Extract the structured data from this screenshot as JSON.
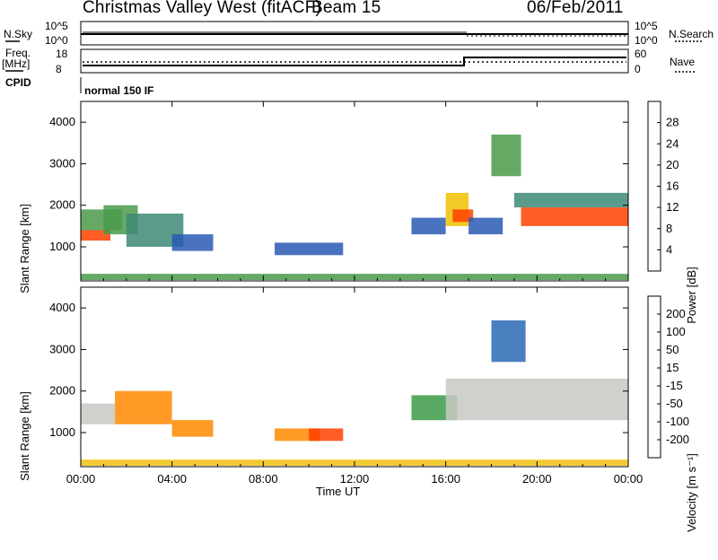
{
  "header": {
    "station": "Christmas Valley West (fitACF)",
    "beam": "Beam 15",
    "date": "06/Feb/2011"
  },
  "top_panel": {
    "nsky_label": "N.Sky",
    "nsky_ticks": [
      "10^5",
      "10^0"
    ],
    "nsearch_label": "N.Search",
    "nsearch_ticks": [
      "10^5",
      "10^0"
    ],
    "freq_label_1": "Freq.",
    "freq_label_2": "[MHz]",
    "freq_ticks": [
      "18",
      "8"
    ],
    "nave_label": "Nave",
    "nave_ticks": [
      "60",
      "0"
    ],
    "cpid_label": "CPID",
    "cpid_value": "normal 150 IF"
  },
  "colors": {
    "power": [
      "#1a1aff",
      "#2a5ab4",
      "#3d8a78",
      "#4a9a4a",
      "#f0c000",
      "#ff8000",
      "#ff4000",
      "#ff0000"
    ],
    "velocity": [
      "#2020c8",
      "#2a6ab4",
      "#3c9a46",
      "#7ad040",
      "#c8c8c4",
      "#f0c010",
      "#ff8800",
      "#ff4000",
      "#e00000"
    ]
  },
  "chart_data": [
    {
      "type": "heatmap",
      "quantity": "Power",
      "ylabel": "Slant Range [km]",
      "xlabel": "",
      "ylim": [
        180,
        4500
      ],
      "xlim": [
        0,
        24
      ],
      "x_ticks": [
        "00:00",
        "04:00",
        "08:00",
        "12:00",
        "16:00",
        "20:00",
        "00:00"
      ],
      "y_ticks": [
        1000,
        2000,
        3000,
        4000
      ],
      "colorbar_label": "Power [dB]",
      "colorbar_ticks": [
        "4",
        "8",
        "12",
        "16",
        "20",
        "24",
        "28"
      ],
      "colorbar_range": [
        0,
        30
      ],
      "regions": [
        {
          "t0": 0.0,
          "t1": 1.3,
          "r0": 1150,
          "r1": 1400,
          "value": 26
        },
        {
          "t0": 0.0,
          "t1": 1.8,
          "r0": 1400,
          "r1": 1900,
          "value": 12
        },
        {
          "t0": 1.0,
          "t1": 2.5,
          "r0": 1300,
          "r1": 2000,
          "value": 14
        },
        {
          "t0": 2.0,
          "t1": 4.5,
          "r0": 1000,
          "r1": 1800,
          "value": 8
        },
        {
          "t0": 4.0,
          "t1": 5.8,
          "r0": 900,
          "r1": 1300,
          "value": 6
        },
        {
          "t0": 8.5,
          "t1": 11.5,
          "r0": 800,
          "r1": 1100,
          "value": 6
        },
        {
          "t0": 0.0,
          "t1": 24.0,
          "r0": 200,
          "r1": 350,
          "value": 14
        },
        {
          "t0": 14.5,
          "t1": 16.0,
          "r0": 1300,
          "r1": 1700,
          "value": 5
        },
        {
          "t0": 16.0,
          "t1": 17.0,
          "r0": 1500,
          "r1": 2300,
          "value": 18
        },
        {
          "t0": 16.3,
          "t1": 17.2,
          "r0": 1600,
          "r1": 1900,
          "value": 26
        },
        {
          "t0": 17.0,
          "t1": 18.5,
          "r0": 1300,
          "r1": 1700,
          "value": 5
        },
        {
          "t0": 18.0,
          "t1": 19.3,
          "r0": 2700,
          "r1": 3700,
          "value": 12
        },
        {
          "t0": 19.3,
          "t1": 24.0,
          "r0": 1500,
          "r1": 1950,
          "value": 26
        },
        {
          "t0": 19.0,
          "t1": 24.0,
          "r0": 1950,
          "r1": 2300,
          "value": 10
        }
      ]
    },
    {
      "type": "heatmap",
      "quantity": "Velocity",
      "ylabel": "Slant Range [km]",
      "xlabel": "Time UT",
      "ylim": [
        180,
        4500
      ],
      "xlim": [
        0,
        24
      ],
      "x_ticks": [
        "00:00",
        "04:00",
        "08:00",
        "12:00",
        "16:00",
        "20:00",
        "00:00"
      ],
      "y_ticks": [
        1000,
        2000,
        3000,
        4000
      ],
      "colorbar_label": "Velocity [m s⁻¹]",
      "colorbar_ticks": [
        "200",
        "100",
        "50",
        "15",
        "-15",
        "-50",
        "-100",
        "-200"
      ],
      "regions": [
        {
          "t0": 0.0,
          "t1": 1.5,
          "r0": 1200,
          "r1": 1700,
          "value": 0
        },
        {
          "t0": 1.5,
          "t1": 4.0,
          "r0": 1200,
          "r1": 2000,
          "value": -60
        },
        {
          "t0": 4.0,
          "t1": 5.8,
          "r0": 900,
          "r1": 1300,
          "value": -100
        },
        {
          "t0": 8.5,
          "t1": 10.5,
          "r0": 800,
          "r1": 1100,
          "value": -60
        },
        {
          "t0": 10.0,
          "t1": 11.5,
          "r0": 800,
          "r1": 1100,
          "value": -150
        },
        {
          "t0": 0.0,
          "t1": 24.0,
          "r0": 200,
          "r1": 350,
          "value": -30
        },
        {
          "t0": 14.5,
          "t1": 16.5,
          "r0": 1300,
          "r1": 1900,
          "value": 80
        },
        {
          "t0": 16.0,
          "t1": 24.0,
          "r0": 1300,
          "r1": 2300,
          "value": 0
        },
        {
          "t0": 18.0,
          "t1": 19.5,
          "r0": 2700,
          "r1": 3700,
          "value": 180
        }
      ]
    }
  ]
}
